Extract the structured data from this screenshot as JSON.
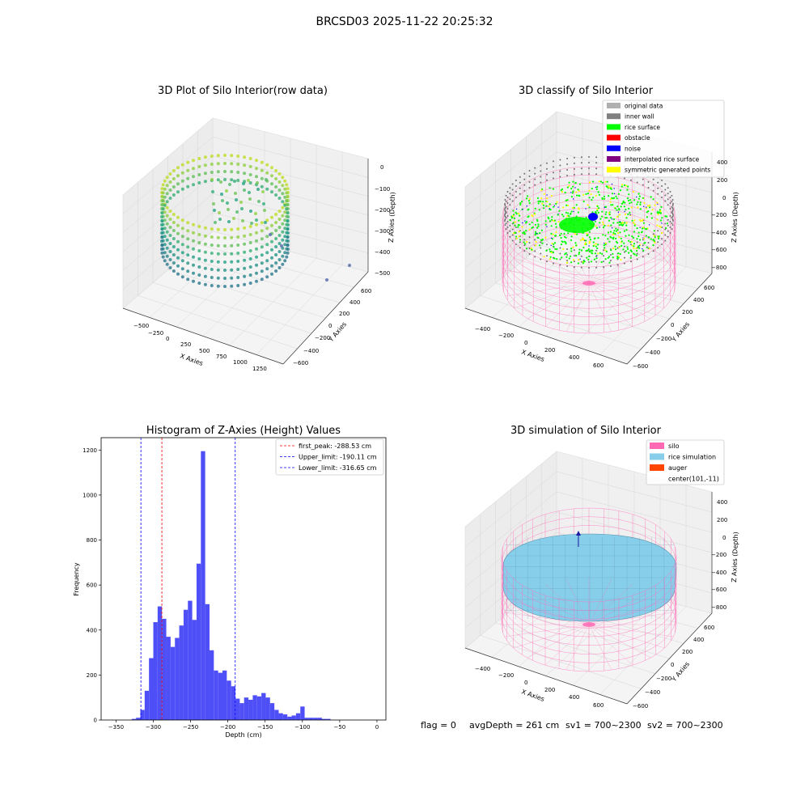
{
  "figure": {
    "title": "BRCSD03 2025-11-22 20:25:32"
  },
  "colors": {
    "viridis_low": "#2a788e",
    "viridis_mid": "#22a884",
    "viridis_high": "#bddf26",
    "hist_blue": "#4f4ff7",
    "peak_red": "#ff0000",
    "limit_blue": "#0000ff",
    "silo_pink": "#ff69b4",
    "rice_blue": "#87ceeb",
    "auger_orange": "#ff4500"
  },
  "panels": {
    "raw": {
      "title": "3D Plot of Silo Interior(row data)",
      "xlabel": "X Axies",
      "ylabel": "Y Axies",
      "zlabel": "Z Axies (Depth)",
      "xticks": [
        "−500",
        "−250",
        "0",
        "250",
        "500",
        "750",
        "1000",
        "1250"
      ],
      "yticks": [
        "−600",
        "−400",
        "−200",
        "0",
        "200",
        "400",
        "600"
      ],
      "zticks": [
        "−500",
        "−400",
        "−300",
        "−200",
        "−100",
        "0"
      ]
    },
    "classify": {
      "title": "3D classify of Silo Interior",
      "xlabel": "X Axies",
      "ylabel": "Y Axies",
      "zlabel": "Z Axies (Depth)",
      "xticks": [
        "−400",
        "−200",
        "0",
        "200",
        "400",
        "600"
      ],
      "yticks": [
        "−600",
        "−400",
        "−200",
        "0",
        "200",
        "400",
        "600"
      ],
      "zticks": [
        "−800",
        "−600",
        "−400",
        "−200",
        "0",
        "200",
        "400"
      ],
      "legend": [
        {
          "label": "original data",
          "color": "#b0b0b0"
        },
        {
          "label": "inner wall",
          "color": "#808080"
        },
        {
          "label": "rice surface",
          "color": "#00ff00"
        },
        {
          "label": "obstacle",
          "color": "#ff0000"
        },
        {
          "label": "noise",
          "color": "#0000ff"
        },
        {
          "label": "interpolated rice surface",
          "color": "#800080"
        },
        {
          "label": "symmetric generated points",
          "color": "#ffff00"
        }
      ]
    },
    "simulation": {
      "title": "3D simulation of Silo Interior",
      "xlabel": "X Axies",
      "ylabel": "Y Axies",
      "zlabel": "Z Axies (Depth)",
      "xticks": [
        "−400",
        "−200",
        "0",
        "200",
        "400",
        "600"
      ],
      "yticks": [
        "−600",
        "−400",
        "−200",
        "0",
        "200",
        "400",
        "600"
      ],
      "zticks": [
        "−800",
        "−600",
        "−400",
        "−200",
        "0",
        "200",
        "400"
      ],
      "legend": [
        {
          "label": "silo",
          "color": "#ff69b4"
        },
        {
          "label": "rice simulation",
          "color": "#87ceeb"
        },
        {
          "label": "auger",
          "color": "#ff4500"
        },
        {
          "label": "center(101,-11)",
          "color": ""
        }
      ]
    }
  },
  "status": {
    "flag": "flag = 0",
    "avg_depth": "avgDepth = 261 cm",
    "sv1": "sv1 = 700~2300",
    "sv2": "sv2 = 700~2300"
  },
  "chart_data": [
    {
      "type": "histogram",
      "title": "Histogram of Z-Axies (Height) Values",
      "xlabel": "Depth (cm)",
      "ylabel": "Frequency",
      "xlim": [
        -370,
        12
      ],
      "ylim": [
        0,
        1255
      ],
      "xticks": [
        -350,
        -300,
        -250,
        -200,
        -150,
        -100,
        -50,
        0
      ],
      "yticks": [
        0,
        200,
        400,
        600,
        800,
        1000,
        1200
      ],
      "bin_start": -329,
      "bin_width": 5.8,
      "counts": [
        5,
        10,
        45,
        130,
        275,
        435,
        505,
        450,
        370,
        325,
        365,
        420,
        490,
        530,
        445,
        695,
        1195,
        515,
        310,
        220,
        210,
        220,
        175,
        150,
        95,
        75,
        100,
        90,
        110,
        105,
        120,
        100,
        75,
        45,
        30,
        25,
        15,
        20,
        30,
        60,
        10,
        10,
        10,
        10,
        5,
        5
      ],
      "lines": [
        {
          "label": "first_peak: -288.53 cm",
          "x": -288.53,
          "color": "#ff0000"
        },
        {
          "label": "Upper_limit: -190.11 cm",
          "x": -190.11,
          "color": "#0000ff"
        },
        {
          "label": "Lower_limit: -316.65 cm",
          "x": -316.65,
          "color": "#0000ff"
        }
      ],
      "legend_position": "top-right"
    }
  ]
}
